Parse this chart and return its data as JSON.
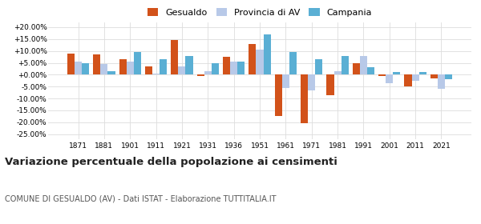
{
  "years": [
    1871,
    1881,
    1901,
    1911,
    1921,
    1931,
    1936,
    1951,
    1961,
    1971,
    1981,
    1991,
    2001,
    2011,
    2021
  ],
  "gesualdo": [
    9.0,
    8.5,
    6.5,
    3.5,
    14.5,
    -0.5,
    7.5,
    13.0,
    -17.5,
    -20.5,
    -8.5,
    5.0,
    -0.5,
    -5.0,
    -1.5
  ],
  "provincia_av": [
    5.5,
    4.5,
    5.5,
    0.5,
    3.5,
    1.5,
    5.5,
    10.5,
    -5.5,
    -6.5,
    1.5,
    8.0,
    -3.5,
    -2.5,
    -6.0
  ],
  "campania": [
    5.0,
    1.5,
    9.5,
    6.5,
    8.0,
    5.0,
    5.5,
    17.0,
    9.5,
    6.5,
    8.0,
    3.0,
    1.0,
    1.0,
    -2.0
  ],
  "color_gesualdo": "#d2521a",
  "color_provincia": "#b8c9e8",
  "color_campania": "#5aafd4",
  "title": "Variazione percentuale della popolazione ai censimenti",
  "subtitle": "COMUNE DI GESUALDO (AV) - Dati ISTAT - Elaborazione TUTTITALIA.IT",
  "legend_labels": [
    "Gesualdo",
    "Provincia di AV",
    "Campania"
  ],
  "ylim": [
    -27,
    22
  ],
  "yticks": [
    -25,
    -20,
    -15,
    -10,
    -5,
    0,
    5,
    10,
    15,
    20
  ],
  "background_color": "#ffffff",
  "grid_color": "#dddddd",
  "title_fontsize": 9.5,
  "subtitle_fontsize": 7.0,
  "bar_width": 0.28
}
